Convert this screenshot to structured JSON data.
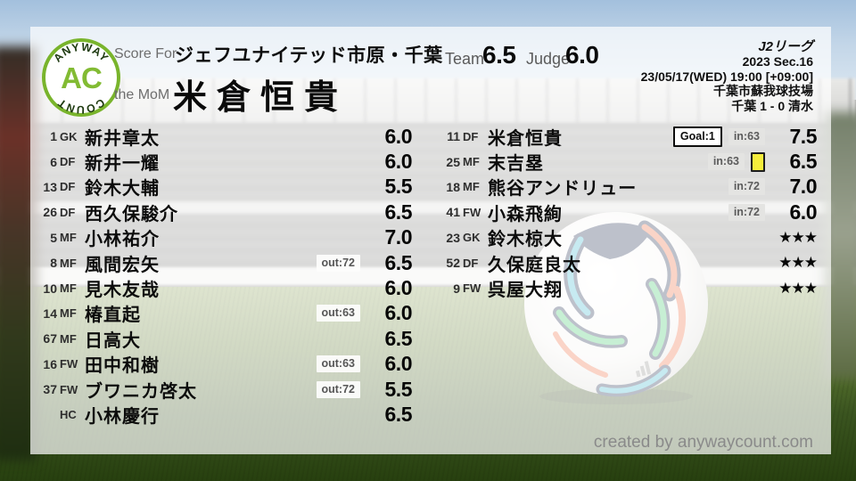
{
  "logo": {
    "arc_top": "ANYWAY",
    "arc_bottom": "COUNT",
    "monogram": "AC"
  },
  "header": {
    "score_for_label": "Score For",
    "team_name": "ジェフユナイテッド市原・千葉",
    "mom_label": "the MoM",
    "mom_name": "米倉恒貴",
    "team_label": "Team",
    "team_value": "6.5",
    "judge_label": "Judge",
    "judge_value": "6.0"
  },
  "meta": {
    "competition": "J2リーグ",
    "season": "2023 Sec.16",
    "datetime": "23/05/17(WED) 19:00 [+09:00]",
    "venue": "千葉市蘇我球技場",
    "result": "千葉 1 - 0 清水"
  },
  "footer": {
    "credit": "created by anywaycount.com"
  },
  "colors": {
    "accent_green": "#79b42c",
    "card_yellow": "#f6ee3c",
    "in_badge_bg": "#e4e4e2",
    "out_badge_bg": "#fdfdfc",
    "panel": "rgba(255,255,255,0.71)"
  },
  "chart_data": {
    "type": "table",
    "title": "Player ratings — ジェフユナイテッド市原・千葉 (J2リーグ 2023 Sec.16)",
    "columns": [
      "number",
      "position",
      "name",
      "events",
      "rating"
    ],
    "team_average": "6.5",
    "judge_rating": "6.0",
    "no_rating_symbol": "★★★",
    "starters": [
      {
        "num": "1",
        "pos": "GK",
        "name": "新井章太",
        "badges": [],
        "rating": "6.0"
      },
      {
        "num": "6",
        "pos": "DF",
        "name": "新井一耀",
        "badges": [],
        "rating": "6.0"
      },
      {
        "num": "13",
        "pos": "DF",
        "name": "鈴木大輔",
        "badges": [],
        "rating": "5.5"
      },
      {
        "num": "26",
        "pos": "DF",
        "name": "西久保駿介",
        "badges": [],
        "rating": "6.5"
      },
      {
        "num": "5",
        "pos": "MF",
        "name": "小林祐介",
        "badges": [],
        "rating": "7.0"
      },
      {
        "num": "8",
        "pos": "MF",
        "name": "風間宏矢",
        "badges": [
          {
            "style": "out",
            "label": "out:72"
          }
        ],
        "rating": "6.5"
      },
      {
        "num": "10",
        "pos": "MF",
        "name": "見木友哉",
        "badges": [],
        "rating": "6.0"
      },
      {
        "num": "14",
        "pos": "MF",
        "name": "椿直起",
        "badges": [
          {
            "style": "out",
            "label": "out:63"
          }
        ],
        "rating": "6.0"
      },
      {
        "num": "67",
        "pos": "MF",
        "name": "日高大",
        "badges": [],
        "rating": "6.5"
      },
      {
        "num": "16",
        "pos": "FW",
        "name": "田中和樹",
        "badges": [
          {
            "style": "out",
            "label": "out:63"
          }
        ],
        "rating": "6.0"
      },
      {
        "num": "37",
        "pos": "FW",
        "name": "ブワニカ啓太",
        "badges": [
          {
            "style": "out",
            "label": "out:72"
          }
        ],
        "rating": "5.5"
      },
      {
        "num": "",
        "pos": "HC",
        "name": "小林慶行",
        "badges": [],
        "rating": "6.5"
      }
    ],
    "substitutes": [
      {
        "num": "11",
        "pos": "DF",
        "name": "米倉恒貴",
        "badges": [
          {
            "style": "goal",
            "label": "Goal:1"
          },
          {
            "style": "in",
            "label": "in:63"
          }
        ],
        "rating": "7.5"
      },
      {
        "num": "25",
        "pos": "MF",
        "name": "末吉塁",
        "badges": [
          {
            "style": "in",
            "label": "in:63"
          },
          {
            "style": "yellow-card",
            "label": ""
          }
        ],
        "rating": "6.5"
      },
      {
        "num": "18",
        "pos": "MF",
        "name": "熊谷アンドリュー",
        "badges": [
          {
            "style": "in",
            "label": "in:72"
          }
        ],
        "rating": "7.0"
      },
      {
        "num": "41",
        "pos": "FW",
        "name": "小森飛絢",
        "badges": [
          {
            "style": "in",
            "label": "in:72"
          }
        ],
        "rating": "6.0"
      },
      {
        "num": "23",
        "pos": "GK",
        "name": "鈴木椋大",
        "badges": [],
        "rating": "★★★"
      },
      {
        "num": "52",
        "pos": "DF",
        "name": "久保庭良太",
        "badges": [],
        "rating": "★★★"
      },
      {
        "num": "9",
        "pos": "FW",
        "name": "呉屋大翔",
        "badges": [],
        "rating": "★★★"
      }
    ]
  }
}
